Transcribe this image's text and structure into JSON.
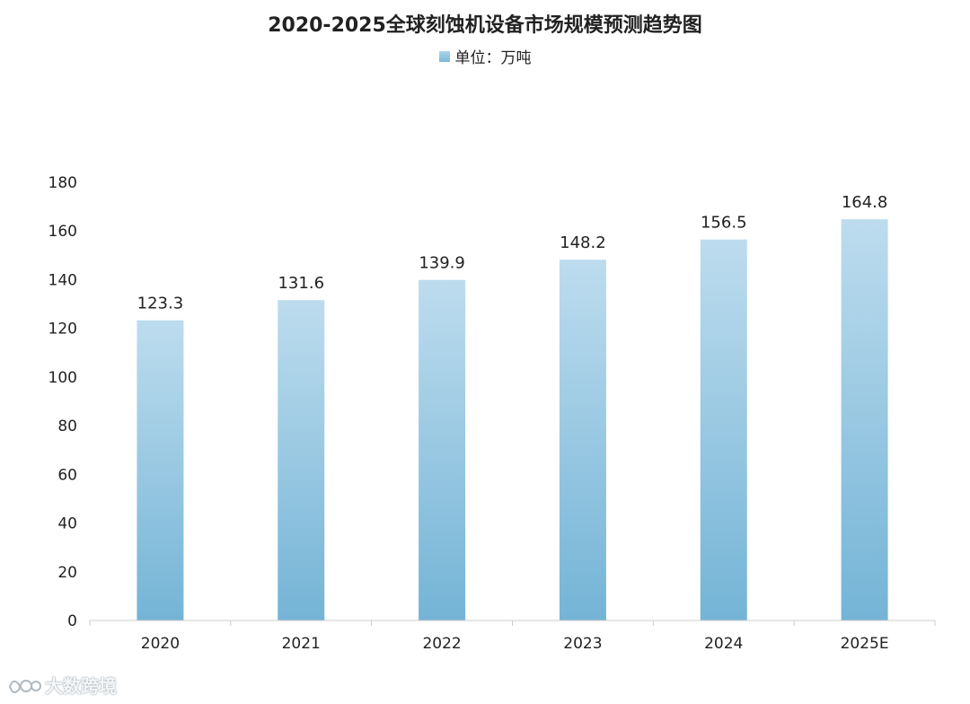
{
  "chart_data": {
    "type": "bar",
    "title": "2020-2025全球刻蚀机设备市场规模预测趋势图",
    "legend": "单位：万吨",
    "categories": [
      "2020",
      "2021",
      "2022",
      "2023",
      "2024",
      "2025E"
    ],
    "values": [
      123.3,
      131.6,
      139.9,
      148.2,
      156.5,
      164.8
    ],
    "data_labels": [
      "123.3",
      "131.6",
      "139.9",
      "148.2",
      "156.5",
      "164.8"
    ],
    "yticks": [
      "0",
      "20",
      "40",
      "60",
      "80",
      "100",
      "120",
      "140",
      "160",
      "180"
    ],
    "ylim": [
      0,
      180
    ],
    "grid": false,
    "legend_position": "top-center",
    "colors": {
      "bar_top": "#bddcee",
      "bar_bottom": "#74b4d6",
      "axis": "#cccccc"
    }
  },
  "watermark": {
    "text": "大数跨境"
  }
}
